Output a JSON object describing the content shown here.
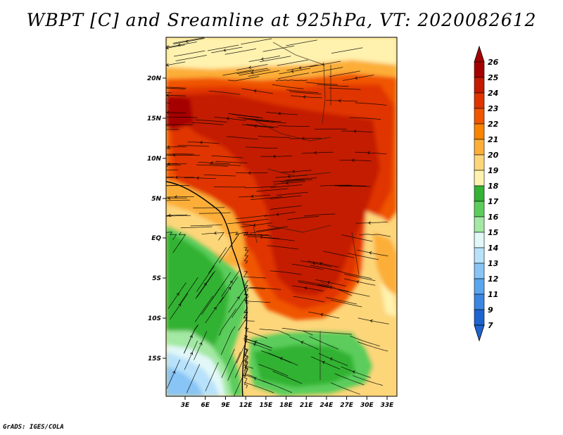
{
  "title": "WBPT [C] and Sreamline at 925hPa, VT: 2020082612",
  "credit": "GrADS: IGES/COLA",
  "map": {
    "lat_ticks": [
      "20N",
      "15N",
      "10N",
      "5N",
      "EQ",
      "5S",
      "10S",
      "15S"
    ],
    "lon_ticks": [
      "3E",
      "6E",
      "9E",
      "12E",
      "15E",
      "18E",
      "21E",
      "24E",
      "27E",
      "30E",
      "33E"
    ],
    "variable": "WBPT",
    "units": "C",
    "level": "925hPa",
    "valid_time": "2020082612"
  },
  "colorbar": {
    "labels": [
      "26",
      "25",
      "24",
      "23",
      "22",
      "21",
      "20",
      "19",
      "18",
      "17",
      "16",
      "15",
      "14",
      "13",
      "12",
      "11",
      "9",
      "7"
    ],
    "colors": [
      "#a50000",
      "#c41a00",
      "#e03400",
      "#f05500",
      "#f88400",
      "#fcae38",
      "#fdd67a",
      "#fff2ae",
      "#33b233",
      "#5ccd5c",
      "#a3e8a3",
      "#e2f8f8",
      "#b8e2fb",
      "#88c4f5",
      "#5aa6ee",
      "#3a86e2",
      "#1e64d0"
    ],
    "top_arrow_color": "#a50000",
    "bottom_arrow_color": "#1e64d0"
  }
}
